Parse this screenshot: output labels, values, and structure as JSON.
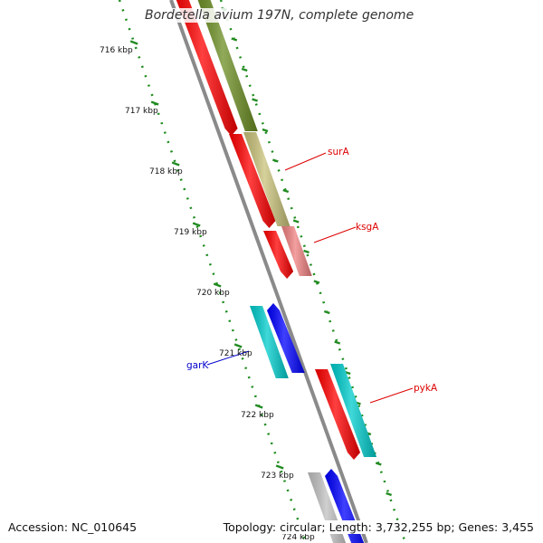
{
  "title": "Bordetella avium 197N, complete genome",
  "accession": "Accession: NC_010645",
  "topology": "Topology: circular; Length: 3,732,255 bp; Genes: 3,455",
  "colors": {
    "forward_track": "#ff0000",
    "reverse_track": "#0000ff",
    "cyan_gene": "#00cccc",
    "olive_gene": "#6b8e23",
    "khaki_gene": "#c9c27a",
    "pink_gene": "#f08080",
    "gray_gene": "#c0c0c0",
    "backbone": "#888888",
    "ruler": "#228b22"
  },
  "ruler_labels": [
    "716 kbp",
    "717 kbp",
    "718 kbp",
    "719 kbp",
    "720 kbp",
    "721 kbp",
    "722 kbp",
    "723 kbp",
    "724 kbp"
  ],
  "gene_labels": [
    {
      "name": "surA",
      "color": "#dd0000"
    },
    {
      "name": "ksgA",
      "color": "#dd0000"
    },
    {
      "name": "garK",
      "color": "#0000cc"
    },
    {
      "name": "pykA",
      "color": "#dd0000"
    }
  ]
}
